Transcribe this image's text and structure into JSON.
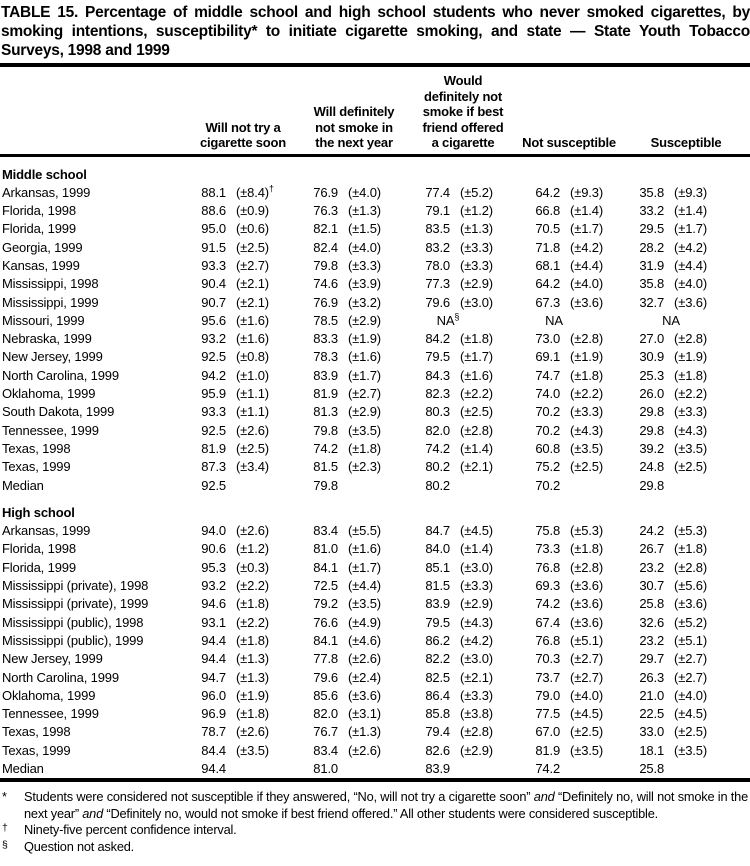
{
  "title": "TABLE 15.  Percentage of middle school and high school students who never smoked cigarettes, by smoking intentions, susceptibility* to initiate cigarette smoking, and state — State Youth Tobacco Surveys, 1998 and 1999",
  "table": {
    "columns": [
      [
        "Will not try a",
        "cigarette soon"
      ],
      [
        "Will definitely",
        "not smoke in",
        "the next year"
      ],
      [
        "Would",
        "definitely not",
        "smoke if best",
        "friend offered",
        "a cigarette"
      ],
      [
        "Not susceptible"
      ],
      [
        "Susceptible"
      ]
    ],
    "sections": [
      {
        "label": "Middle school",
        "rows": [
          {
            "state": "Arkansas, 1999",
            "cells": [
              [
                "88.1",
                "(±8.4)",
                "†"
              ],
              [
                "76.9",
                "(±4.0)"
              ],
              [
                "77.4",
                "(±5.2)"
              ],
              [
                "64.2",
                "(±9.3)"
              ],
              [
                "35.8",
                "(±9.3)"
              ]
            ]
          },
          {
            "state": "Florida, 1998",
            "cells": [
              [
                "88.6",
                "(±0.9)"
              ],
              [
                "76.3",
                "(±1.3)"
              ],
              [
                "79.1",
                "(±1.2)"
              ],
              [
                "66.8",
                "(±1.4)"
              ],
              [
                "33.2",
                "(±1.4)"
              ]
            ]
          },
          {
            "state": "Florida, 1999",
            "cells": [
              [
                "95.0",
                "(±0.6)"
              ],
              [
                "82.1",
                "(±1.5)"
              ],
              [
                "83.5",
                "(±1.3)"
              ],
              [
                "70.5",
                "(±1.7)"
              ],
              [
                "29.5",
                "(±1.7)"
              ]
            ]
          },
          {
            "state": "Georgia, 1999",
            "cells": [
              [
                "91.5",
                "(±2.5)"
              ],
              [
                "82.4",
                "(±4.0)"
              ],
              [
                "83.2",
                "(±3.3)"
              ],
              [
                "71.8",
                "(±4.2)"
              ],
              [
                "28.2",
                "(±4.2)"
              ]
            ]
          },
          {
            "state": "Kansas, 1999",
            "cells": [
              [
                "93.3",
                "(±2.7)"
              ],
              [
                "79.8",
                "(±3.3)"
              ],
              [
                "78.0",
                "(±3.3)"
              ],
              [
                "68.1",
                "(±4.4)"
              ],
              [
                "31.9",
                "(±4.4)"
              ]
            ]
          },
          {
            "state": "Mississippi, 1998",
            "cells": [
              [
                "90.4",
                "(±2.1)"
              ],
              [
                "74.6",
                "(±3.9)"
              ],
              [
                "77.3",
                "(±2.9)"
              ],
              [
                "64.2",
                "(±4.0)"
              ],
              [
                "35.8",
                "(±4.0)"
              ]
            ]
          },
          {
            "state": "Mississippi, 1999",
            "cells": [
              [
                "90.7",
                "(±2.1)"
              ],
              [
                "76.9",
                "(±3.2)"
              ],
              [
                "79.6",
                "(±3.0)"
              ],
              [
                "67.3",
                "(±3.6)"
              ],
              [
                "32.7",
                "(±3.6)"
              ]
            ]
          },
          {
            "state": "Missouri, 1999",
            "cells": [
              [
                "95.6",
                "(±1.6)"
              ],
              [
                "78.5",
                "(±2.9)"
              ],
              [
                "NA",
                null,
                "§"
              ],
              [
                "NA",
                null
              ],
              [
                "NA",
                null
              ]
            ]
          },
          {
            "state": "Nebraska, 1999",
            "cells": [
              [
                "93.2",
                "(±1.6)"
              ],
              [
                "83.3",
                "(±1.9)"
              ],
              [
                "84.2",
                "(±1.8)"
              ],
              [
                "73.0",
                "(±2.8)"
              ],
              [
                "27.0",
                "(±2.8)"
              ]
            ]
          },
          {
            "state": "New Jersey, 1999",
            "cells": [
              [
                "92.5",
                "(±0.8)"
              ],
              [
                "78.3",
                "(±1.6)"
              ],
              [
                "79.5",
                "(±1.7)"
              ],
              [
                "69.1",
                "(±1.9)"
              ],
              [
                "30.9",
                "(±1.9)"
              ]
            ]
          },
          {
            "state": "North Carolina, 1999",
            "cells": [
              [
                "94.2",
                "(±1.0)"
              ],
              [
                "83.9",
                "(±1.7)"
              ],
              [
                "84.3",
                "(±1.6)"
              ],
              [
                "74.7",
                "(±1.8)"
              ],
              [
                "25.3",
                "(±1.8)"
              ]
            ]
          },
          {
            "state": "Oklahoma, 1999",
            "cells": [
              [
                "95.9",
                "(±1.1)"
              ],
              [
                "81.9",
                "(±2.7)"
              ],
              [
                "82.3",
                "(±2.2)"
              ],
              [
                "74.0",
                "(±2.2)"
              ],
              [
                "26.0",
                "(±2.2)"
              ]
            ]
          },
          {
            "state": "South Dakota, 1999",
            "cells": [
              [
                "93.3",
                "(±1.1)"
              ],
              [
                "81.3",
                "(±2.9)"
              ],
              [
                "80.3",
                "(±2.5)"
              ],
              [
                "70.2",
                "(±3.3)"
              ],
              [
                "29.8",
                "(±3.3)"
              ]
            ]
          },
          {
            "state": "Tennessee, 1999",
            "cells": [
              [
                "92.5",
                "(±2.6)"
              ],
              [
                "79.8",
                "(±3.5)"
              ],
              [
                "82.0",
                "(±2.8)"
              ],
              [
                "70.2",
                "(±4.3)"
              ],
              [
                "29.8",
                "(±4.3)"
              ]
            ]
          },
          {
            "state": "Texas, 1998",
            "cells": [
              [
                "81.9",
                "(±2.5)"
              ],
              [
                "74.2",
                "(±1.8)"
              ],
              [
                "74.2",
                "(±1.4)"
              ],
              [
                "60.8",
                "(±3.5)"
              ],
              [
                "39.2",
                "(±3.5)"
              ]
            ]
          },
          {
            "state": "Texas, 1999",
            "cells": [
              [
                "87.3",
                "(±3.4)"
              ],
              [
                "81.5",
                "(±2.3)"
              ],
              [
                "80.2",
                "(±2.1)"
              ],
              [
                "75.2",
                "(±2.5)"
              ],
              [
                "24.8",
                "(±2.5)"
              ]
            ]
          },
          {
            "state": "Median",
            "cells": [
              [
                "92.5",
                ""
              ],
              [
                "79.8",
                ""
              ],
              [
                "80.2",
                ""
              ],
              [
                "70.2",
                ""
              ],
              [
                "29.8",
                ""
              ]
            ]
          }
        ]
      },
      {
        "label": "High school",
        "rows": [
          {
            "state": "Arkansas, 1999",
            "cells": [
              [
                "94.0",
                "(±2.6)"
              ],
              [
                "83.4",
                "(±5.5)"
              ],
              [
                "84.7",
                "(±4.5)"
              ],
              [
                "75.8",
                "(±5.3)"
              ],
              [
                "24.2",
                "(±5.3)"
              ]
            ]
          },
          {
            "state": "Florida, 1998",
            "cells": [
              [
                "90.6",
                "(±1.2)"
              ],
              [
                "81.0",
                "(±1.6)"
              ],
              [
                "84.0",
                "(±1.4)"
              ],
              [
                "73.3",
                "(±1.8)"
              ],
              [
                "26.7",
                "(±1.8)"
              ]
            ]
          },
          {
            "state": "Florida, 1999",
            "cells": [
              [
                "95.3",
                "(±0.3)"
              ],
              [
                "84.1",
                "(±1.7)"
              ],
              [
                "85.1",
                "(±3.0)"
              ],
              [
                "76.8",
                "(±2.8)"
              ],
              [
                "23.2",
                "(±2.8)"
              ]
            ]
          },
          {
            "state": "Mississippi (private), 1998",
            "cells": [
              [
                "93.2",
                "(±2.2)"
              ],
              [
                "72.5",
                "(±4.4)"
              ],
              [
                "81.5",
                "(±3.3)"
              ],
              [
                "69.3",
                "(±3.6)"
              ],
              [
                "30.7",
                "(±5.6)"
              ]
            ]
          },
          {
            "state": "Mississippi (private), 1999",
            "cells": [
              [
                "94.6",
                "(±1.8)"
              ],
              [
                "79.2",
                "(±3.5)"
              ],
              [
                "83.9",
                "(±2.9)"
              ],
              [
                "74.2",
                "(±3.6)"
              ],
              [
                "25.8",
                "(±3.6)"
              ]
            ]
          },
          {
            "state": "Mississippi (public), 1998",
            "cells": [
              [
                "93.1",
                "(±2.2)"
              ],
              [
                "76.6",
                "(±4.9)"
              ],
              [
                "79.5",
                "(±4.3)"
              ],
              [
                "67.4",
                "(±3.6)"
              ],
              [
                "32.6",
                "(±5.2)"
              ]
            ]
          },
          {
            "state": "Mississippi (public), 1999",
            "cells": [
              [
                "94.4",
                "(±1.8)"
              ],
              [
                "84.1",
                "(±4.6)"
              ],
              [
                "86.2",
                "(±4.2)"
              ],
              [
                "76.8",
                "(±5.1)"
              ],
              [
                "23.2",
                "(±5.1)"
              ]
            ]
          },
          {
            "state": "New Jersey, 1999",
            "cells": [
              [
                "94.4",
                "(±1.3)"
              ],
              [
                "77.8",
                "(±2.6)"
              ],
              [
                "82.2",
                "(±3.0)"
              ],
              [
                "70.3",
                "(±2.7)"
              ],
              [
                "29.7",
                "(±2.7)"
              ]
            ]
          },
          {
            "state": "North Carolina, 1999",
            "cells": [
              [
                "94.7",
                "(±1.3)"
              ],
              [
                "79.6",
                "(±2.4)"
              ],
              [
                "82.5",
                "(±2.1)"
              ],
              [
                "73.7",
                "(±2.7)"
              ],
              [
                "26.3",
                "(±2.7)"
              ]
            ]
          },
          {
            "state": "Oklahoma, 1999",
            "cells": [
              [
                "96.0",
                "(±1.9)"
              ],
              [
                "85.6",
                "(±3.6)"
              ],
              [
                "86.4",
                "(±3.3)"
              ],
              [
                "79.0",
                "(±4.0)"
              ],
              [
                "21.0",
                "(±4.0)"
              ]
            ]
          },
          {
            "state": "Tennessee, 1999",
            "cells": [
              [
                "96.9",
                "(±1.8)"
              ],
              [
                "82.0",
                "(±3.1)"
              ],
              [
                "85.8",
                "(±3.8)"
              ],
              [
                "77.5",
                "(±4.5)"
              ],
              [
                "22.5",
                "(±4.5)"
              ]
            ]
          },
          {
            "state": "Texas, 1998",
            "cells": [
              [
                "78.7",
                "(±2.6)"
              ],
              [
                "76.7",
                "(±1.3)"
              ],
              [
                "79.4",
                "(±2.8)"
              ],
              [
                "67.0",
                "(±2.5)"
              ],
              [
                "33.0",
                "(±2.5)"
              ]
            ]
          },
          {
            "state": "Texas, 1999",
            "cells": [
              [
                "84.4",
                "(±3.5)"
              ],
              [
                "83.4",
                "(±2.6)"
              ],
              [
                "82.6",
                "(±2.9)"
              ],
              [
                "81.9",
                "(±3.5)"
              ],
              [
                "18.1",
                "(±3.5)"
              ]
            ]
          },
          {
            "state": "Median",
            "cells": [
              [
                "94.4",
                ""
              ],
              [
                "81.0",
                ""
              ],
              [
                "83.9",
                ""
              ],
              [
                "74.2",
                ""
              ],
              [
                "25.8",
                ""
              ]
            ]
          }
        ]
      }
    ]
  },
  "footnotes": [
    {
      "marker": "*",
      "sup": false,
      "parts": [
        {
          "text": "Students were considered not susceptible if they answered, “No, will not try a cigarette soon” "
        },
        {
          "text": "and",
          "italic": true
        },
        {
          "text": " “Definitely no, will not smoke in the next year” "
        },
        {
          "text": "and",
          "italic": true
        },
        {
          "text": " “Definitely no, would not smoke if best friend offered.”  All other students were considered susceptible."
        }
      ]
    },
    {
      "marker": "†",
      "sup": true,
      "parts": [
        {
          "text": "Ninety-five percent confidence interval."
        }
      ]
    },
    {
      "marker": "§",
      "sup": true,
      "parts": [
        {
          "text": "Question not asked."
        }
      ]
    }
  ]
}
